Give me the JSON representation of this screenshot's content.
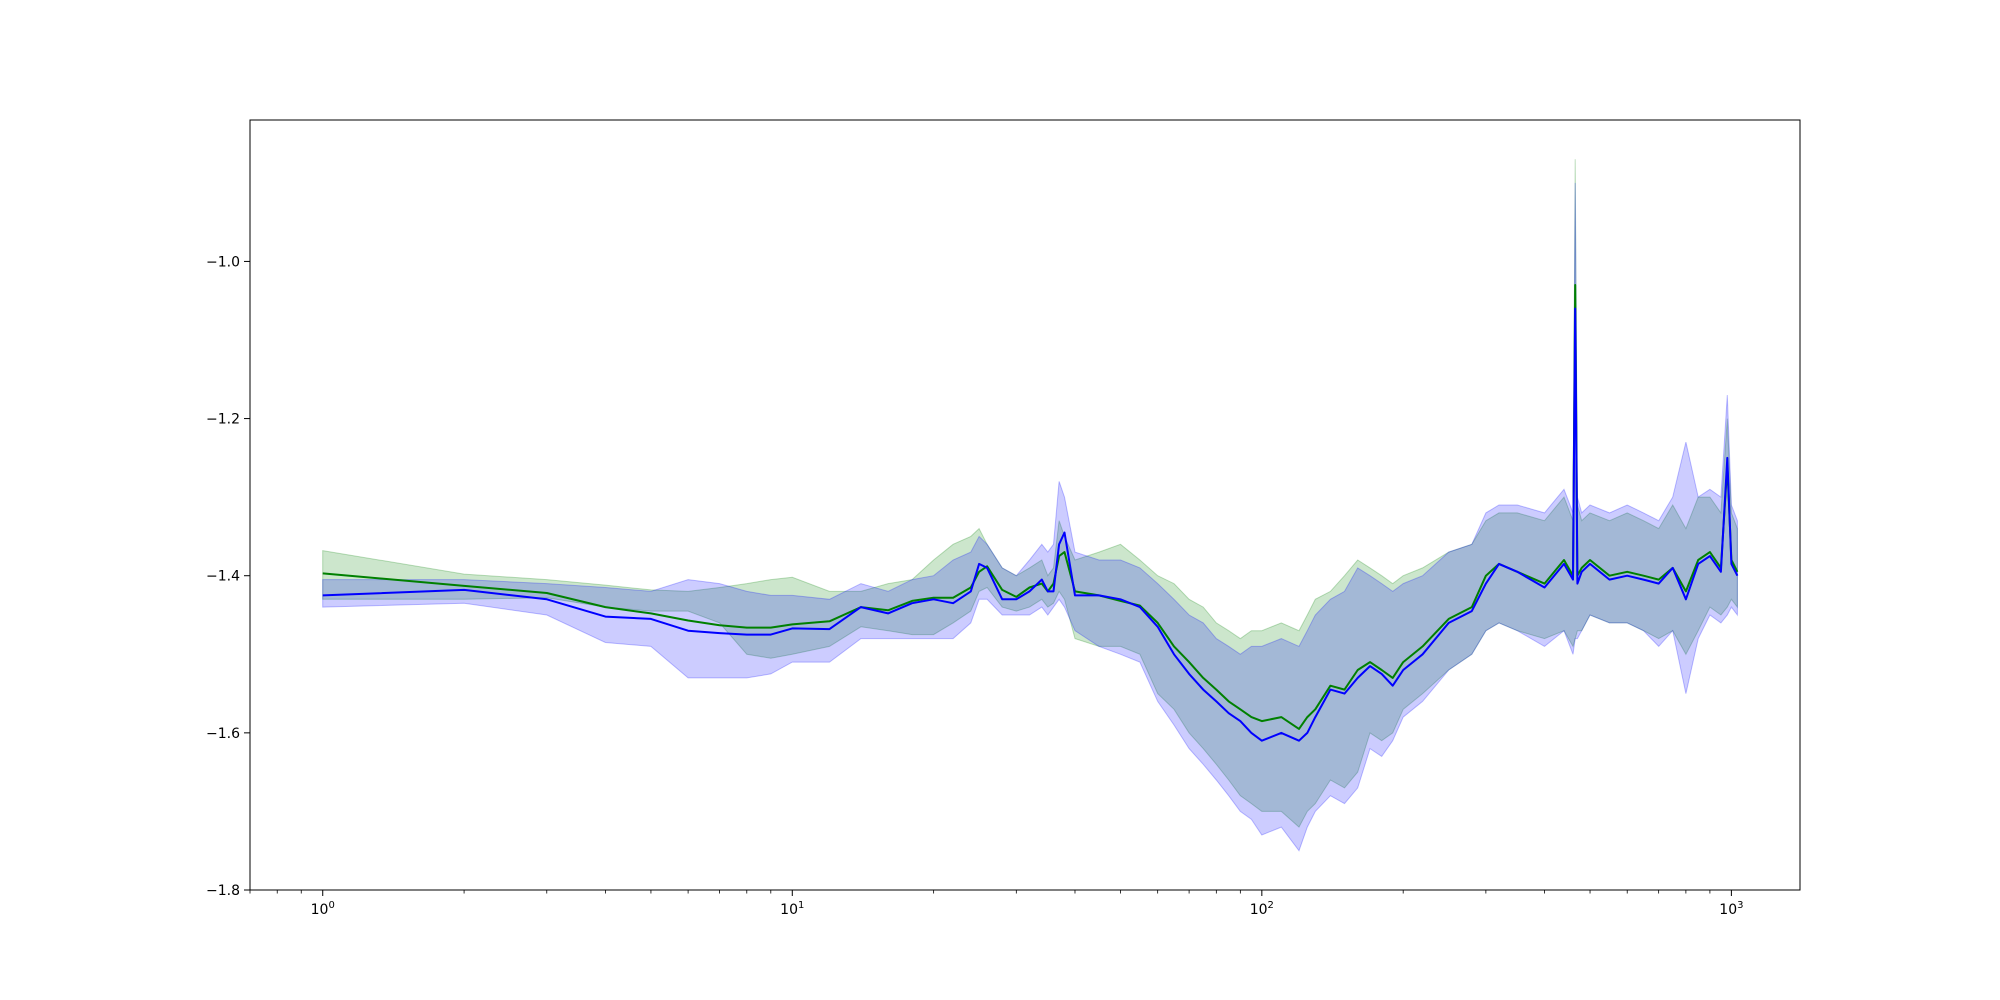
{
  "chart_data": {
    "type": "line",
    "title": "",
    "xlabel": "",
    "ylabel": "",
    "x_scale": "log",
    "xlim": [
      0.7,
      1400
    ],
    "ylim": [
      -1.8,
      -0.82
    ],
    "x_ticks": [
      {
        "value": 1,
        "base": "10",
        "exp": "0"
      },
      {
        "value": 10,
        "base": "10",
        "exp": "1"
      },
      {
        "value": 100,
        "base": "10",
        "exp": "2"
      },
      {
        "value": 1000,
        "base": "10",
        "exp": "3"
      }
    ],
    "y_ticks": [
      {
        "value": -1.8,
        "label": "−1.8"
      },
      {
        "value": -1.6,
        "label": "−1.6"
      },
      {
        "value": -1.4,
        "label": "−1.4"
      },
      {
        "value": -1.2,
        "label": "−1.2"
      },
      {
        "value": -1.0,
        "label": "−1.0"
      }
    ],
    "grid": false,
    "series": [
      {
        "color": "#008000",
        "band_color": "#008000",
        "band_opacity": 0.2,
        "x": [
          1,
          2,
          3,
          4,
          5,
          6,
          7,
          8,
          9,
          10,
          12,
          14,
          16,
          18,
          20,
          22,
          24,
          25,
          26,
          28,
          30,
          32,
          34,
          35,
          36,
          37,
          38,
          40,
          45,
          50,
          55,
          60,
          65,
          70,
          75,
          80,
          85,
          90,
          95,
          100,
          110,
          120,
          125,
          130,
          140,
          150,
          160,
          170,
          180,
          190,
          200,
          220,
          250,
          280,
          300,
          320,
          350,
          400,
          440,
          460,
          465,
          470,
          480,
          500,
          550,
          600,
          650,
          700,
          750,
          800,
          850,
          900,
          950,
          980,
          1000,
          1030
        ],
        "y": [
          -1.397,
          -1.413,
          -1.422,
          -1.44,
          -1.448,
          -1.457,
          -1.463,
          -1.466,
          -1.466,
          -1.462,
          -1.458,
          -1.44,
          -1.444,
          -1.432,
          -1.428,
          -1.428,
          -1.415,
          -1.395,
          -1.388,
          -1.418,
          -1.427,
          -1.415,
          -1.41,
          -1.42,
          -1.41,
          -1.375,
          -1.37,
          -1.42,
          -1.425,
          -1.432,
          -1.438,
          -1.46,
          -1.49,
          -1.51,
          -1.53,
          -1.545,
          -1.56,
          -1.57,
          -1.58,
          -1.585,
          -1.58,
          -1.595,
          -1.58,
          -1.57,
          -1.54,
          -1.545,
          -1.52,
          -1.51,
          -1.52,
          -1.53,
          -1.51,
          -1.49,
          -1.455,
          -1.44,
          -1.4,
          -1.385,
          -1.395,
          -1.41,
          -1.38,
          -1.4,
          -1.03,
          -1.4,
          -1.39,
          -1.38,
          -1.4,
          -1.395,
          -1.4,
          -1.405,
          -1.39,
          -1.42,
          -1.38,
          -1.37,
          -1.39,
          -1.26,
          -1.38,
          -1.395
        ],
        "lower": [
          -1.43,
          -1.43,
          -1.428,
          -1.44,
          -1.445,
          -1.445,
          -1.46,
          -1.5,
          -1.505,
          -1.5,
          -1.49,
          -1.465,
          -1.47,
          -1.475,
          -1.475,
          -1.46,
          -1.445,
          -1.42,
          -1.415,
          -1.44,
          -1.445,
          -1.44,
          -1.43,
          -1.44,
          -1.435,
          -1.42,
          -1.43,
          -1.48,
          -1.49,
          -1.49,
          -1.5,
          -1.55,
          -1.57,
          -1.6,
          -1.62,
          -1.64,
          -1.66,
          -1.68,
          -1.69,
          -1.7,
          -1.7,
          -1.72,
          -1.7,
          -1.69,
          -1.66,
          -1.67,
          -1.65,
          -1.6,
          -1.61,
          -1.6,
          -1.57,
          -1.55,
          -1.52,
          -1.5,
          -1.47,
          -1.46,
          -1.47,
          -1.48,
          -1.47,
          -1.49,
          -1.48,
          -1.47,
          -1.47,
          -1.45,
          -1.46,
          -1.46,
          -1.47,
          -1.48,
          -1.47,
          -1.5,
          -1.47,
          -1.44,
          -1.45,
          -1.44,
          -1.43,
          -1.44
        ],
        "upper": [
          -1.368,
          -1.398,
          -1.405,
          -1.412,
          -1.418,
          -1.42,
          -1.415,
          -1.41,
          -1.405,
          -1.402,
          -1.42,
          -1.42,
          -1.41,
          -1.405,
          -1.38,
          -1.36,
          -1.35,
          -1.34,
          -1.36,
          -1.39,
          -1.4,
          -1.39,
          -1.38,
          -1.4,
          -1.39,
          -1.33,
          -1.35,
          -1.38,
          -1.37,
          -1.36,
          -1.38,
          -1.4,
          -1.41,
          -1.43,
          -1.44,
          -1.46,
          -1.47,
          -1.48,
          -1.47,
          -1.47,
          -1.46,
          -1.47,
          -1.45,
          -1.43,
          -1.42,
          -1.4,
          -1.38,
          -1.39,
          -1.4,
          -1.41,
          -1.4,
          -1.39,
          -1.37,
          -1.36,
          -1.33,
          -1.32,
          -1.32,
          -1.33,
          -1.3,
          -1.33,
          -0.87,
          -1.31,
          -1.33,
          -1.32,
          -1.33,
          -1.32,
          -1.33,
          -1.34,
          -1.31,
          -1.34,
          -1.3,
          -1.3,
          -1.32,
          -1.2,
          -1.32,
          -1.34
        ]
      },
      {
        "color": "#0000ff",
        "band_color": "#0000ff",
        "band_opacity": 0.2,
        "x": [
          1,
          2,
          3,
          4,
          5,
          6,
          7,
          8,
          9,
          10,
          12,
          14,
          16,
          18,
          20,
          22,
          24,
          25,
          26,
          28,
          30,
          32,
          34,
          35,
          36,
          37,
          38,
          40,
          45,
          50,
          55,
          60,
          65,
          70,
          75,
          80,
          85,
          90,
          95,
          100,
          110,
          120,
          125,
          130,
          140,
          150,
          160,
          170,
          180,
          190,
          200,
          220,
          250,
          280,
          300,
          320,
          350,
          400,
          440,
          460,
          465,
          470,
          480,
          500,
          550,
          600,
          650,
          700,
          750,
          800,
          850,
          900,
          950,
          980,
          1000,
          1030
        ],
        "y": [
          -1.425,
          -1.418,
          -1.43,
          -1.452,
          -1.455,
          -1.47,
          -1.473,
          -1.475,
          -1.475,
          -1.467,
          -1.468,
          -1.44,
          -1.448,
          -1.435,
          -1.43,
          -1.435,
          -1.42,
          -1.385,
          -1.39,
          -1.43,
          -1.43,
          -1.42,
          -1.405,
          -1.42,
          -1.42,
          -1.36,
          -1.345,
          -1.425,
          -1.425,
          -1.43,
          -1.44,
          -1.465,
          -1.5,
          -1.525,
          -1.545,
          -1.56,
          -1.575,
          -1.585,
          -1.6,
          -1.61,
          -1.6,
          -1.61,
          -1.6,
          -1.58,
          -1.545,
          -1.55,
          -1.53,
          -1.515,
          -1.525,
          -1.54,
          -1.52,
          -1.5,
          -1.46,
          -1.445,
          -1.41,
          -1.385,
          -1.395,
          -1.415,
          -1.385,
          -1.405,
          -1.06,
          -1.41,
          -1.395,
          -1.385,
          -1.405,
          -1.4,
          -1.405,
          -1.41,
          -1.39,
          -1.43,
          -1.385,
          -1.375,
          -1.395,
          -1.25,
          -1.385,
          -1.4
        ],
        "lower": [
          -1.44,
          -1.435,
          -1.45,
          -1.485,
          -1.49,
          -1.53,
          -1.53,
          -1.53,
          -1.525,
          -1.51,
          -1.51,
          -1.48,
          -1.48,
          -1.48,
          -1.48,
          -1.48,
          -1.46,
          -1.43,
          -1.43,
          -1.45,
          -1.45,
          -1.45,
          -1.44,
          -1.45,
          -1.44,
          -1.43,
          -1.44,
          -1.47,
          -1.49,
          -1.5,
          -1.51,
          -1.56,
          -1.59,
          -1.62,
          -1.64,
          -1.66,
          -1.68,
          -1.7,
          -1.71,
          -1.73,
          -1.72,
          -1.75,
          -1.72,
          -1.7,
          -1.68,
          -1.69,
          -1.67,
          -1.62,
          -1.63,
          -1.61,
          -1.58,
          -1.56,
          -1.52,
          -1.5,
          -1.47,
          -1.46,
          -1.47,
          -1.49,
          -1.47,
          -1.5,
          -1.48,
          -1.48,
          -1.47,
          -1.45,
          -1.46,
          -1.46,
          -1.47,
          -1.49,
          -1.47,
          -1.55,
          -1.48,
          -1.45,
          -1.46,
          -1.45,
          -1.44,
          -1.45
        ],
        "upper": [
          -1.405,
          -1.405,
          -1.41,
          -1.415,
          -1.42,
          -1.405,
          -1.41,
          -1.42,
          -1.425,
          -1.425,
          -1.43,
          -1.41,
          -1.42,
          -1.405,
          -1.4,
          -1.38,
          -1.37,
          -1.35,
          -1.36,
          -1.39,
          -1.4,
          -1.38,
          -1.36,
          -1.37,
          -1.36,
          -1.28,
          -1.3,
          -1.37,
          -1.38,
          -1.38,
          -1.39,
          -1.41,
          -1.43,
          -1.45,
          -1.46,
          -1.48,
          -1.49,
          -1.5,
          -1.49,
          -1.49,
          -1.48,
          -1.49,
          -1.47,
          -1.45,
          -1.43,
          -1.42,
          -1.39,
          -1.4,
          -1.41,
          -1.42,
          -1.41,
          -1.4,
          -1.37,
          -1.36,
          -1.32,
          -1.31,
          -1.31,
          -1.32,
          -1.29,
          -1.32,
          -0.9,
          -1.3,
          -1.32,
          -1.31,
          -1.32,
          -1.31,
          -1.32,
          -1.33,
          -1.3,
          -1.23,
          -1.3,
          -1.29,
          -1.3,
          -1.17,
          -1.31,
          -1.33
        ]
      }
    ]
  }
}
